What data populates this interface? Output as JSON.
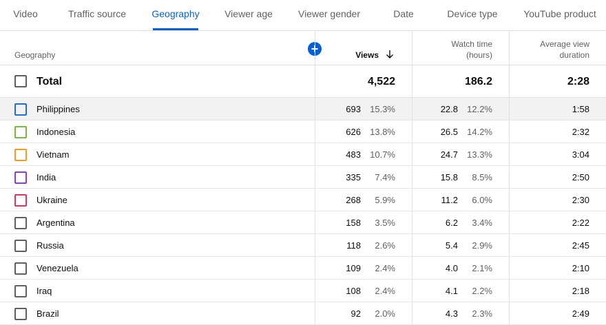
{
  "tabs": [
    "Video",
    "Traffic source",
    "Geography",
    "Viewer age",
    "Viewer gender",
    "Date",
    "Device type",
    "YouTube product"
  ],
  "active_tab": 2,
  "table": {
    "headers": {
      "geography": "Geography",
      "views": "Views",
      "watch_time": "Watch time (hours)",
      "avg_duration": "Average view duration"
    },
    "total": {
      "label": "Total",
      "views": "4,522",
      "watch_time": "186.2",
      "avg_duration": "2:28"
    },
    "rows": [
      {
        "country": "Philippines",
        "views": "693",
        "views_pct": "15.3%",
        "watch_time": "22.8",
        "watch_pct": "12.2%",
        "avg_duration": "1:58",
        "color": "#1e6fd9"
      },
      {
        "country": "Indonesia",
        "views": "626",
        "views_pct": "13.8%",
        "watch_time": "26.5",
        "watch_pct": "14.2%",
        "avg_duration": "2:32",
        "color": "#7cb342"
      },
      {
        "country": "Vietnam",
        "views": "483",
        "views_pct": "10.7%",
        "watch_time": "24.7",
        "watch_pct": "13.3%",
        "avg_duration": "3:04",
        "color": "#f29c1f"
      },
      {
        "country": "India",
        "views": "335",
        "views_pct": "7.4%",
        "watch_time": "15.8",
        "watch_pct": "8.5%",
        "avg_duration": "2:50",
        "color": "#8b3ddb"
      },
      {
        "country": "Ukraine",
        "views": "268",
        "views_pct": "5.9%",
        "watch_time": "11.2",
        "watch_pct": "6.0%",
        "avg_duration": "2:30",
        "color": "#d6385b"
      },
      {
        "country": "Argentina",
        "views": "158",
        "views_pct": "3.5%",
        "watch_time": "6.2",
        "watch_pct": "3.4%",
        "avg_duration": "2:22",
        "color": "#606060"
      },
      {
        "country": "Russia",
        "views": "118",
        "views_pct": "2.6%",
        "watch_time": "5.4",
        "watch_pct": "2.9%",
        "avg_duration": "2:45",
        "color": "#606060"
      },
      {
        "country": "Venezuela",
        "views": "109",
        "views_pct": "2.4%",
        "watch_time": "4.0",
        "watch_pct": "2.1%",
        "avg_duration": "2:10",
        "color": "#606060"
      },
      {
        "country": "Iraq",
        "views": "108",
        "views_pct": "2.4%",
        "watch_time": "4.1",
        "watch_pct": "2.2%",
        "avg_duration": "2:18",
        "color": "#606060"
      },
      {
        "country": "Brazil",
        "views": "92",
        "views_pct": "2.0%",
        "watch_time": "4.3",
        "watch_pct": "2.3%",
        "avg_duration": "2:49",
        "color": "#606060"
      }
    ]
  }
}
